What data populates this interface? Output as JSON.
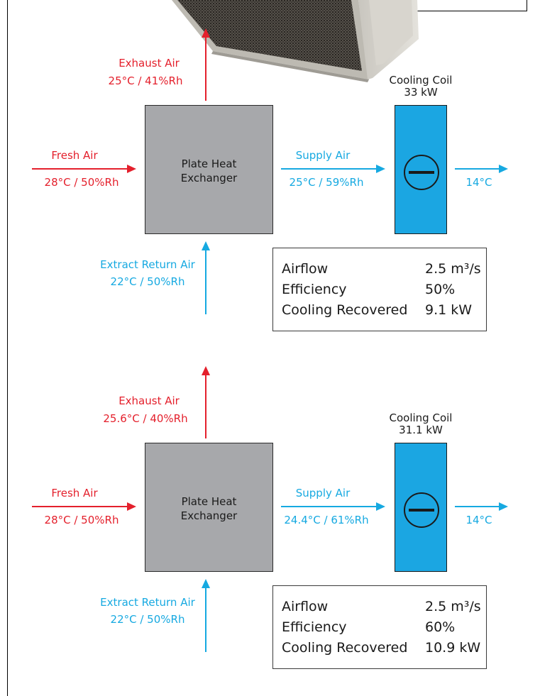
{
  "colors": {
    "hot": "#e4202c",
    "cool": "#16a9e1",
    "exchanger": "#a7a8ab",
    "coil": "#1ba6e2"
  },
  "diagrams": [
    {
      "exhaust": {
        "label": "Exhaust Air",
        "value": "25°C / 41%Rh"
      },
      "fresh": {
        "label": "Fresh Air",
        "value": "28°C / 50%Rh"
      },
      "exchanger": {
        "line1": "Plate Heat",
        "line2": "Exchanger"
      },
      "supply": {
        "label": "Supply Air",
        "value": "25°C / 59%Rh"
      },
      "coil": {
        "line1": "Cooling Coil",
        "line2": "33 kW"
      },
      "offcoil": "14°C",
      "extract": {
        "label": "Extract Return Air",
        "value": "22°C / 50%Rh"
      },
      "info": [
        {
          "key": "Airflow",
          "value": "2.5 m³/s"
        },
        {
          "key": "Efficiency",
          "value": "50%"
        },
        {
          "key": "Cooling Recovered",
          "value": "9.1 kW"
        }
      ]
    },
    {
      "exhaust": {
        "label": "Exhaust Air",
        "value": "25.6°C / 40%Rh"
      },
      "fresh": {
        "label": "Fresh Air",
        "value": "28°C / 50%Rh"
      },
      "exchanger": {
        "line1": "Plate Heat",
        "line2": "Exchanger"
      },
      "supply": {
        "label": "Supply Air",
        "value": "24.4°C / 61%Rh"
      },
      "coil": {
        "line1": "Cooling Coil",
        "line2": "31.1 kW"
      },
      "offcoil": "14°C",
      "extract": {
        "label": "Extract Return Air",
        "value": "22°C / 50%Rh"
      },
      "info": [
        {
          "key": "Airflow",
          "value": "2.5 m³/s"
        },
        {
          "key": "Efficiency",
          "value": "60%"
        },
        {
          "key": "Cooling Recovered",
          "value": "10.9 kW"
        }
      ]
    }
  ]
}
